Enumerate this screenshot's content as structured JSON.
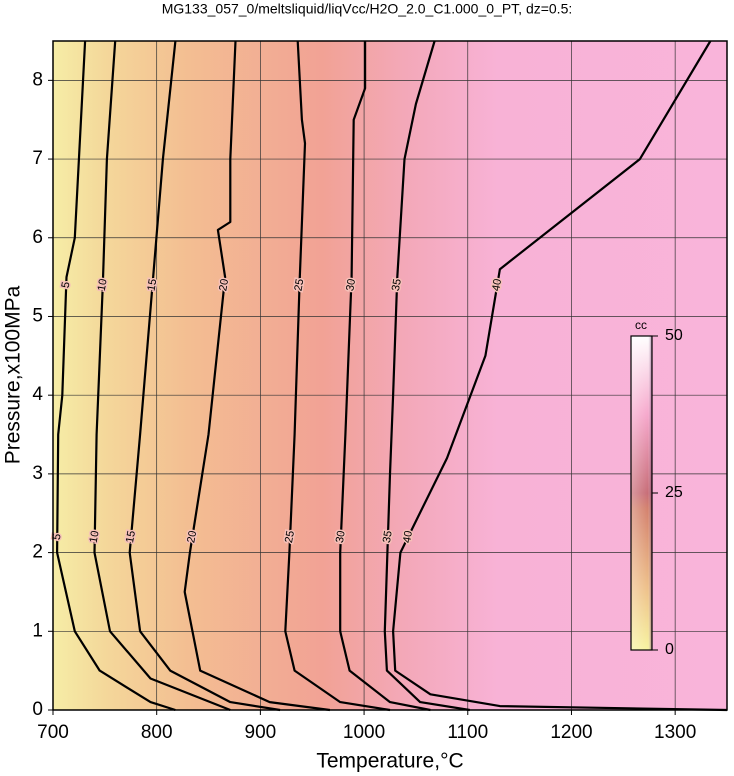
{
  "chart_data": {
    "type": "contour",
    "title": "MG133_057_0/meltsliquid/liqVcc/H2O_2.0_C1.000_0_PT, dz=0.5:",
    "x_label": "Temperature,°C",
    "y_label": "Pressure,x100MPa",
    "xlim": [
      700,
      1350
    ],
    "ylim": [
      0,
      8.5
    ],
    "xticks": [
      700,
      800,
      900,
      1000,
      1100,
      1200,
      1300
    ],
    "yticks": [
      0,
      1,
      2,
      3,
      4,
      5,
      6,
      7,
      8
    ],
    "grid": true,
    "contours": [
      {
        "level": 5,
        "x": [
          731,
          721,
          713,
          709,
          705,
          704,
          721,
          745,
          794,
          818
        ],
        "y": [
          8.5,
          6,
          5.5,
          4,
          3.5,
          2,
          1,
          0.5,
          0.1,
          0
        ]
      },
      {
        "level": 10,
        "x": [
          760,
          752,
          748,
          742,
          740,
          755,
          794,
          871
        ],
        "y": [
          8.5,
          7,
          5.4,
          3.5,
          2,
          1,
          0.4,
          0
        ]
      },
      {
        "level": 15,
        "x": [
          818,
          806,
          796,
          784,
          774,
          784,
          813,
          871,
          919
        ],
        "y": [
          8.5,
          7,
          5.4,
          3.5,
          2,
          1,
          0.5,
          0.1,
          0
        ]
      },
      {
        "level": 20,
        "x": [
          876,
          871,
          871,
          859,
          866,
          850,
          832,
          827,
          842,
          909,
          967
        ],
        "y": [
          8.5,
          7,
          6.2,
          6.1,
          5.5,
          3.5,
          2,
          1.5,
          0.5,
          0.1,
          0
        ]
      },
      {
        "level": 25,
        "x": [
          936,
          940,
          943,
          938,
          933,
          928,
          924,
          933,
          977,
          1025
        ],
        "y": [
          8.5,
          7.5,
          7.2,
          5.5,
          3.5,
          2,
          1,
          0.5,
          0.1,
          0
        ]
      },
      {
        "level": 30,
        "x": [
          1001,
          1001,
          990,
          988,
          982,
          977,
          977,
          986,
          1025,
          1064
        ],
        "y": [
          8.5,
          7.9,
          7.5,
          5.5,
          3.5,
          2,
          1,
          0.5,
          0.1,
          0
        ]
      },
      {
        "level": 35,
        "x": [
          1068,
          1050,
          1039,
          1032,
          1028,
          1025,
          1020,
          1022,
          1054,
          1102
        ],
        "y": [
          8.5,
          7.7,
          7,
          5.5,
          4,
          3,
          1,
          0.5,
          0.1,
          0
        ]
      },
      {
        "level": 40,
        "x": [
          1334,
          1266,
          1131,
          1117,
          1080,
          1035,
          1028,
          1030,
          1064,
          1131,
          1350
        ],
        "y": [
          8.5,
          7,
          5.6,
          4.5,
          3.2,
          2,
          1,
          0.5,
          0.2,
          0.05,
          0
        ]
      }
    ],
    "colorbar": {
      "label": "cc",
      "lim": [
        0,
        50
      ],
      "ticks": [
        0,
        25,
        50
      ]
    }
  }
}
